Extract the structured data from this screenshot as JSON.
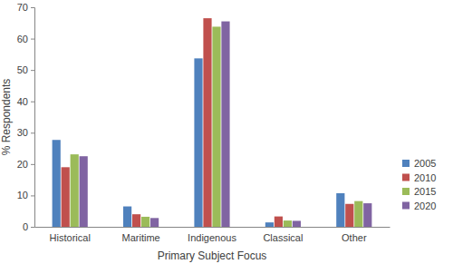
{
  "chart_data": {
    "type": "bar",
    "x_label": "Primary Subject Focus",
    "y_label": "% Respondents",
    "categories": [
      "Historical",
      "Maritime",
      "Indigenous",
      "Classical",
      "Other"
    ],
    "series": [
      {
        "name": "2005",
        "color": "#4f81bd",
        "values": [
          27.7,
          6.5,
          53.7,
          1.4,
          10.7
        ]
      },
      {
        "name": "2010",
        "color": "#c0504d",
        "values": [
          19.0,
          4.0,
          66.5,
          3.3,
          7.3
        ]
      },
      {
        "name": "2015",
        "color": "#9bbb59",
        "values": [
          23.1,
          3.2,
          63.8,
          2.0,
          8.2
        ]
      },
      {
        "name": "2020",
        "color": "#8064a2",
        "values": [
          22.5,
          2.8,
          65.5,
          1.9,
          7.5
        ]
      }
    ],
    "ylim": [
      0,
      70
    ],
    "yticks": [
      0,
      10,
      20,
      30,
      40,
      50,
      60,
      70
    ],
    "grid": false,
    "legend": "right"
  }
}
